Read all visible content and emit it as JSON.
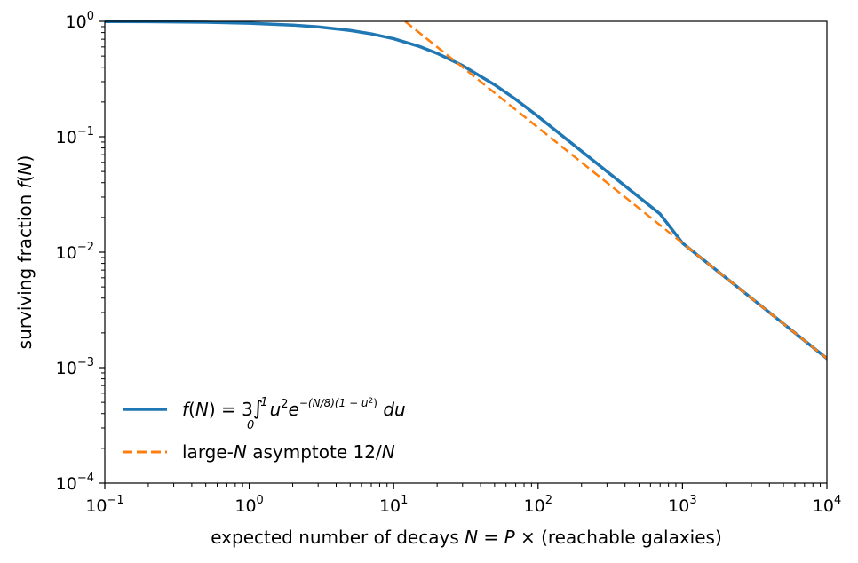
{
  "chart_data": {
    "type": "line",
    "x_scale": "log",
    "y_scale": "log",
    "xlim": [
      0.1,
      10000
    ],
    "ylim": [
      0.0001,
      1
    ],
    "grid": false,
    "legend_placement": "lower-left",
    "xlabel": {
      "pre": "expected number of decays ",
      "var_n": "N",
      "mid1": " = ",
      "var_p": "P",
      "mid2": " × (reachable galaxies)"
    },
    "ylabel": {
      "pre": "surviving fraction ",
      "func": "f",
      "open": "(",
      "var": "N",
      "close": ")"
    },
    "x_ticks": [
      {
        "value": 0.1,
        "base": "10",
        "exp": "−1"
      },
      {
        "value": 1,
        "base": "10",
        "exp": "0"
      },
      {
        "value": 10,
        "base": "10",
        "exp": "1"
      },
      {
        "value": 100,
        "base": "10",
        "exp": "2"
      },
      {
        "value": 1000,
        "base": "10",
        "exp": "3"
      },
      {
        "value": 10000,
        "base": "10",
        "exp": "4"
      }
    ],
    "y_ticks": [
      {
        "value": 0.0001,
        "base": "10",
        "exp": "−4"
      },
      {
        "value": 0.001,
        "base": "10",
        "exp": "−3"
      },
      {
        "value": 0.01,
        "base": "10",
        "exp": "−2"
      },
      {
        "value": 0.1,
        "base": "10",
        "exp": "−1"
      },
      {
        "value": 1,
        "base": "10",
        "exp": "0"
      }
    ],
    "series": [
      {
        "kind": "exact",
        "color": "#1f77b4",
        "line_style": "solid",
        "x": [
          0.1,
          0.2,
          0.5,
          1,
          2,
          3,
          5,
          7,
          10,
          15,
          20,
          30,
          50,
          70,
          100,
          150,
          200,
          300,
          500,
          700,
          1000,
          2000,
          3000,
          5000,
          10000
        ],
        "y": [
          0.9963,
          0.9925,
          0.9815,
          0.9634,
          0.9284,
          0.8952,
          0.8339,
          0.7796,
          0.707,
          0.6071,
          0.5276,
          0.4135,
          0.2819,
          0.2109,
          0.15,
          0.1,
          0.075,
          0.05,
          0.03,
          0.0214,
          0.012,
          0.006,
          0.004,
          0.0024,
          0.0012
        ]
      },
      {
        "kind": "asymptote",
        "color": "#ff7f0e",
        "line_style": "dashed",
        "x": [
          12,
          100,
          1000,
          10000
        ],
        "y": [
          1,
          0.12,
          0.012,
          0.0012
        ]
      }
    ],
    "legend": [
      {
        "color": "#1f77b4",
        "line_style": "solid",
        "label": {
          "f": "f",
          "open": "(",
          "N": "N",
          "eq": ") = 3",
          "int": "∫",
          "upper": "1",
          "lower": "0",
          "u": "u",
          "sq": "2",
          "e": "e",
          "exponent": "−(N/8)(1 − u",
          "exp_sq": "2",
          "exp_close": ")",
          "du": " du"
        }
      },
      {
        "color": "#ff7f0e",
        "line_style": "dashed",
        "label": {
          "pre": "large-",
          "N": "N",
          "mid": " asymptote 12/",
          "N2": "N"
        }
      }
    ]
  }
}
